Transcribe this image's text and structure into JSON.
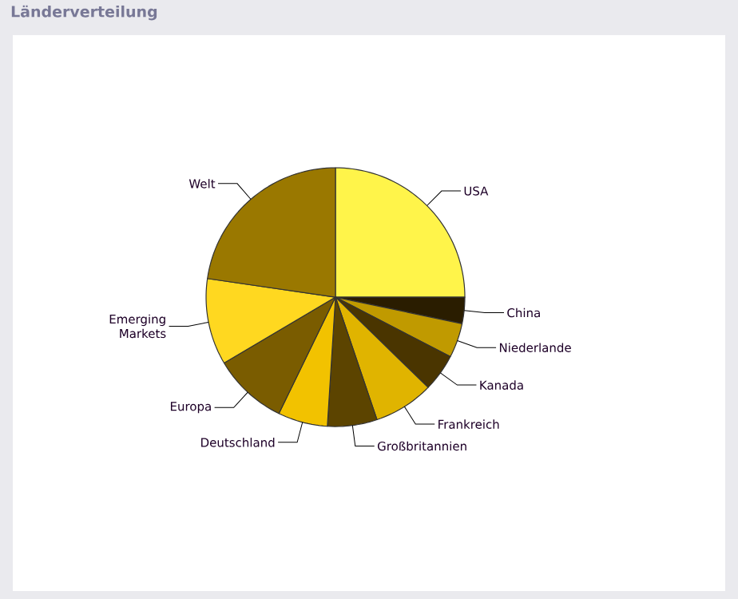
{
  "chart_data": {
    "type": "pie",
    "title": "Länderverteilung",
    "categories": [
      "USA",
      "China",
      "Niederlande",
      "Kanada",
      "Frankreich",
      "Großbritannien",
      "Deutschland",
      "Europa",
      "Emerging Markets",
      "Welt"
    ],
    "values": [
      25,
      3.3,
      4.3,
      4.7,
      7.5,
      6.2,
      6.2,
      9.3,
      10.8,
      22.7
    ],
    "colors": [
      "#fff44a",
      "#2a1d00",
      "#c09a00",
      "#4a3500",
      "#e0b400",
      "#5c4400",
      "#f2c200",
      "#7a5c00",
      "#ffd820",
      "#9a7800"
    ]
  }
}
